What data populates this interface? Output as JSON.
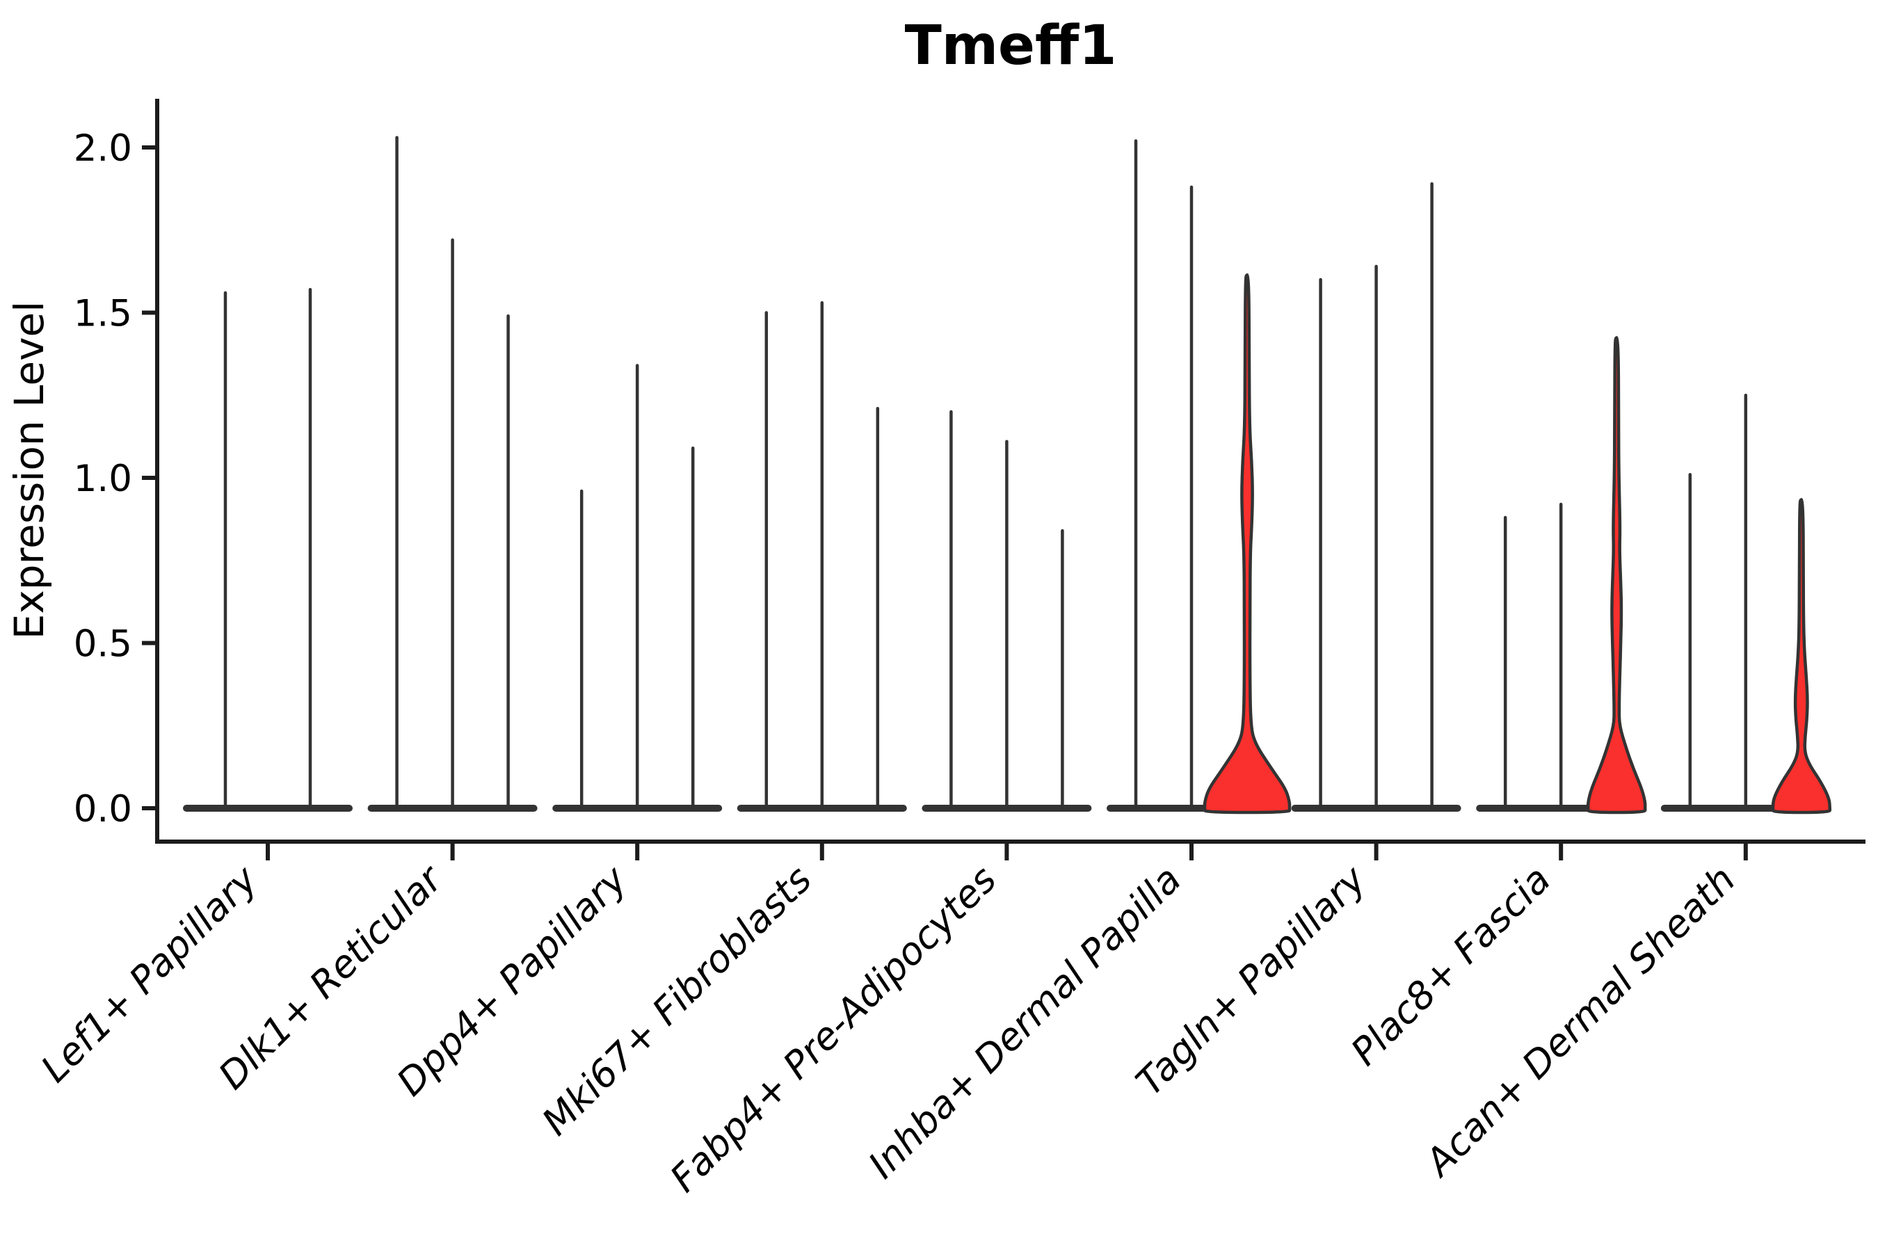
{
  "title": "Tmeff1",
  "ylabel": "Expression Level",
  "chart_data": {
    "type": "violin",
    "title": "Tmeff1",
    "xlabel": "",
    "ylabel": "Expression Level",
    "ylim": [
      0,
      2.15
    ],
    "yticks": [
      0.0,
      0.5,
      1.0,
      1.5,
      2.0
    ],
    "ytick_labels": [
      "0.0",
      "0.5",
      "1.0",
      "1.5",
      "2.0"
    ],
    "x_tick_rotation": 45,
    "grid": false,
    "legend": "none",
    "violin_fill_color": "#F9302D",
    "violin_outline_color": "#333333",
    "axis_color": "#1c1c1c",
    "categories": [
      "Lef1+ Papillary",
      "Dlk1+ Reticular",
      "Dpp4+ Papillary",
      "Mki67+ Fibroblasts",
      "Fabp4+ Pre-Adipocytes",
      "Inhba+ Dermal Papilla",
      "Tagln+ Papillary",
      "Plac8+ Fascia",
      "Acan+ Dermal Sheath"
    ],
    "groups": [
      {
        "category": "Lef1+ Papillary",
        "violins": [
          {
            "shape": "spike",
            "max": 1.56
          },
          {
            "shape": "spike",
            "max": 1.57
          }
        ]
      },
      {
        "category": "Dlk1+ Reticular",
        "violins": [
          {
            "shape": "spike",
            "max": 2.03
          },
          {
            "shape": "spike",
            "max": 1.72
          },
          {
            "shape": "spike",
            "max": 1.49
          }
        ]
      },
      {
        "category": "Dpp4+ Papillary",
        "violins": [
          {
            "shape": "spike",
            "max": 0.96
          },
          {
            "shape": "spike",
            "max": 1.34
          },
          {
            "shape": "spike",
            "max": 1.09
          }
        ]
      },
      {
        "category": "Mki67+ Fibroblasts",
        "violins": [
          {
            "shape": "spike",
            "max": 1.5
          },
          {
            "shape": "spike",
            "max": 1.53
          },
          {
            "shape": "spike",
            "max": 1.21
          }
        ]
      },
      {
        "category": "Fabp4+ Pre-Adipocytes",
        "violins": [
          {
            "shape": "spike",
            "max": 1.2
          },
          {
            "shape": "spike",
            "max": 1.11
          },
          {
            "shape": "spike",
            "max": 0.84
          }
        ]
      },
      {
        "category": "Inhba+ Dermal Papilla",
        "violins": [
          {
            "shape": "spike",
            "max": 2.02
          },
          {
            "shape": "spike",
            "max": 1.88
          },
          {
            "shape": "filled",
            "max": 1.61,
            "profile": [
              [
                1.61,
                2.5
              ],
              [
                1.35,
                2.8
              ],
              [
                1.15,
                3.5
              ],
              [
                1.05,
                6.5
              ],
              [
                0.95,
                8.0
              ],
              [
                0.85,
                6.5
              ],
              [
                0.77,
                4.5
              ],
              [
                0.6,
                4.0
              ],
              [
                0.4,
                4.0
              ],
              [
                0.26,
                5.0
              ],
              [
                0.2,
                10.0
              ],
              [
                0.12,
                35.0
              ],
              [
                0.06,
                55.0
              ],
              [
                0.02,
                61.0
              ],
              [
                0.0,
                61.0
              ]
            ]
          }
        ]
      },
      {
        "category": "Tagln+ Papillary",
        "violins": [
          {
            "shape": "spike",
            "max": 1.6
          },
          {
            "shape": "spike",
            "max": 1.64
          },
          {
            "shape": "spike",
            "max": 1.89
          }
        ]
      },
      {
        "category": "Plac8+ Fascia",
        "violins": [
          {
            "shape": "spike",
            "max": 0.88
          },
          {
            "shape": "spike",
            "max": 0.92
          },
          {
            "shape": "filled",
            "max": 1.42,
            "profile": [
              [
                1.42,
                2.5
              ],
              [
                1.15,
                2.8
              ],
              [
                1.01,
                3.2
              ],
              [
                0.85,
                5.0
              ],
              [
                0.78,
                4.2
              ],
              [
                0.68,
                6.0
              ],
              [
                0.6,
                7.0
              ],
              [
                0.5,
                6.0
              ],
              [
                0.4,
                4.5
              ],
              [
                0.3,
                3.5
              ],
              [
                0.25,
                4.0
              ],
              [
                0.18,
                14.0
              ],
              [
                0.12,
                24.0
              ],
              [
                0.06,
                36.0
              ],
              [
                0.02,
                41.0
              ],
              [
                0.0,
                41.0
              ]
            ]
          }
        ]
      },
      {
        "category": "Acan+ Dermal Sheath",
        "violins": [
          {
            "shape": "spike",
            "max": 1.01
          },
          {
            "shape": "spike",
            "max": 1.25
          },
          {
            "shape": "filled",
            "max": 0.93,
            "profile": [
              [
                0.93,
                2.5
              ],
              [
                0.7,
                2.8
              ],
              [
                0.55,
                3.2
              ],
              [
                0.47,
                4.5
              ],
              [
                0.4,
                7.0
              ],
              [
                0.33,
                9.0
              ],
              [
                0.27,
                8.0
              ],
              [
                0.22,
                5.5
              ],
              [
                0.17,
                4.5
              ],
              [
                0.13,
                12.0
              ],
              [
                0.08,
                28.0
              ],
              [
                0.03,
                40.0
              ],
              [
                0.0,
                41.0
              ]
            ]
          }
        ]
      }
    ]
  }
}
